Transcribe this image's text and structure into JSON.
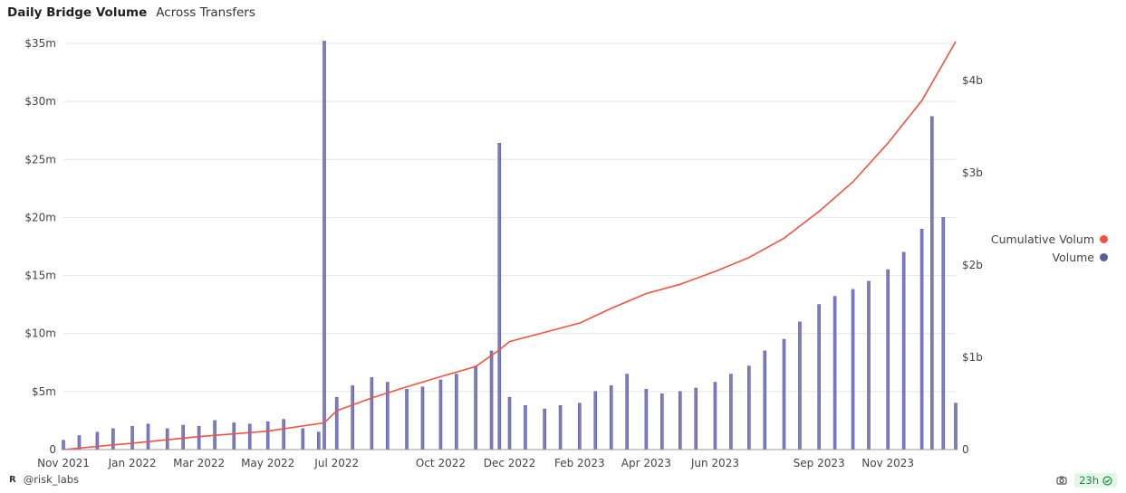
{
  "header": {
    "title": "Daily Bridge Volume",
    "subtitle": "Across Transfers"
  },
  "footer": {
    "brand_mark": "R",
    "handle": "@risk_labs",
    "refresh": "23h"
  },
  "icons": {
    "camera": "camera-icon",
    "status": "check-circle-icon"
  },
  "colors": {
    "volume": "#5b5b9f",
    "volume_fill": "#7d7dc2",
    "cumulative": "#f0533f",
    "grid": "#e6e6e6",
    "badge_text": "#1e8a44"
  },
  "chart_data": {
    "type": "bar",
    "left_axis": {
      "ylim": [
        0,
        35000000
      ],
      "ticks": [
        0,
        5000000,
        10000000,
        15000000,
        20000000,
        25000000,
        30000000,
        35000000
      ],
      "tick_labels": [
        "0",
        "$5m",
        "$10m",
        "$15m",
        "$20m",
        "$25m",
        "$30m",
        "$35m"
      ]
    },
    "right_axis": {
      "ylim": [
        0,
        4400000000
      ],
      "ticks": [
        0,
        1000000000,
        2000000000,
        3000000000,
        4000000000
      ],
      "tick_labels": [
        "0",
        "$1b",
        "$2b",
        "$3b",
        "$4b"
      ]
    },
    "x_axis": {
      "start": "2021-11-01",
      "end": "2023-12-31",
      "ticks": [
        "2021-11-01",
        "2022-01-01",
        "2022-03-01",
        "2022-05-01",
        "2022-07-01",
        "2022-10-01",
        "2022-12-01",
        "2023-02-01",
        "2023-04-01",
        "2023-06-01",
        "2023-09-01",
        "2023-11-01"
      ],
      "tick_labels": [
        "Nov 2021",
        "Jan 2022",
        "Mar 2022",
        "May 2022",
        "Jul 2022",
        "Oct 2022",
        "Dec 2022",
        "Feb 2023",
        "Apr 2023",
        "Jun 2023",
        "Sep 2023",
        "Nov 2023"
      ]
    },
    "grid": true,
    "legend_position": "right",
    "series": [
      {
        "name": "Volume",
        "type": "bar",
        "axis": "left",
        "color": "#5b5b9f",
        "points": [
          [
            "2021-11-01",
            800000
          ],
          [
            "2021-11-15",
            1200000
          ],
          [
            "2021-12-01",
            1500000
          ],
          [
            "2021-12-15",
            1800000
          ],
          [
            "2022-01-01",
            2000000
          ],
          [
            "2022-01-15",
            2200000
          ],
          [
            "2022-02-01",
            1800000
          ],
          [
            "2022-02-15",
            2100000
          ],
          [
            "2022-03-01",
            2000000
          ],
          [
            "2022-03-15",
            2500000
          ],
          [
            "2022-04-01",
            2300000
          ],
          [
            "2022-04-15",
            2200000
          ],
          [
            "2022-05-01",
            2400000
          ],
          [
            "2022-05-15",
            2600000
          ],
          [
            "2022-06-01",
            1800000
          ],
          [
            "2022-06-15",
            1500000
          ],
          [
            "2022-06-20",
            35200000
          ],
          [
            "2022-07-01",
            4500000
          ],
          [
            "2022-07-15",
            5500000
          ],
          [
            "2022-08-01",
            6200000
          ],
          [
            "2022-08-15",
            5800000
          ],
          [
            "2022-09-01",
            5200000
          ],
          [
            "2022-09-15",
            5400000
          ],
          [
            "2022-10-01",
            6000000
          ],
          [
            "2022-10-15",
            6500000
          ],
          [
            "2022-11-01",
            7200000
          ],
          [
            "2022-11-15",
            8500000
          ],
          [
            "2022-11-22",
            26400000
          ],
          [
            "2022-12-01",
            4500000
          ],
          [
            "2022-12-15",
            3800000
          ],
          [
            "2023-01-01",
            3500000
          ],
          [
            "2023-01-15",
            3800000
          ],
          [
            "2023-02-01",
            4000000
          ],
          [
            "2023-02-15",
            5000000
          ],
          [
            "2023-03-01",
            5500000
          ],
          [
            "2023-03-15",
            6500000
          ],
          [
            "2023-04-01",
            5200000
          ],
          [
            "2023-04-15",
            4800000
          ],
          [
            "2023-05-01",
            5000000
          ],
          [
            "2023-05-15",
            5300000
          ],
          [
            "2023-06-01",
            5800000
          ],
          [
            "2023-06-15",
            6500000
          ],
          [
            "2023-07-01",
            7200000
          ],
          [
            "2023-07-15",
            8500000
          ],
          [
            "2023-08-01",
            9500000
          ],
          [
            "2023-08-15",
            11000000
          ],
          [
            "2023-09-01",
            12500000
          ],
          [
            "2023-09-15",
            13200000
          ],
          [
            "2023-10-01",
            13800000
          ],
          [
            "2023-10-15",
            14500000
          ],
          [
            "2023-11-01",
            15500000
          ],
          [
            "2023-11-15",
            17000000
          ],
          [
            "2023-12-01",
            19000000
          ],
          [
            "2023-12-10",
            28700000
          ],
          [
            "2023-12-20",
            20000000
          ],
          [
            "2023-12-31",
            4000000
          ]
        ]
      },
      {
        "name": "Cumulative Volum",
        "type": "line",
        "axis": "right",
        "color": "#f0533f",
        "points": [
          [
            "2021-11-01",
            0
          ],
          [
            "2022-01-01",
            70000000
          ],
          [
            "2022-03-01",
            140000000
          ],
          [
            "2022-05-01",
            200000000
          ],
          [
            "2022-06-20",
            290000000
          ],
          [
            "2022-07-01",
            420000000
          ],
          [
            "2022-08-01",
            560000000
          ],
          [
            "2022-09-01",
            680000000
          ],
          [
            "2022-10-01",
            790000000
          ],
          [
            "2022-11-01",
            900000000
          ],
          [
            "2022-11-22",
            1080000000
          ],
          [
            "2022-12-01",
            1170000000
          ],
          [
            "2023-01-01",
            1270000000
          ],
          [
            "2023-02-01",
            1370000000
          ],
          [
            "2023-03-01",
            1530000000
          ],
          [
            "2023-04-01",
            1690000000
          ],
          [
            "2023-05-01",
            1790000000
          ],
          [
            "2023-06-01",
            1930000000
          ],
          [
            "2023-07-01",
            2080000000
          ],
          [
            "2023-08-01",
            2290000000
          ],
          [
            "2023-09-01",
            2580000000
          ],
          [
            "2023-10-01",
            2900000000
          ],
          [
            "2023-11-01",
            3320000000
          ],
          [
            "2023-12-01",
            3780000000
          ],
          [
            "2023-12-31",
            4420000000
          ]
        ]
      }
    ]
  }
}
